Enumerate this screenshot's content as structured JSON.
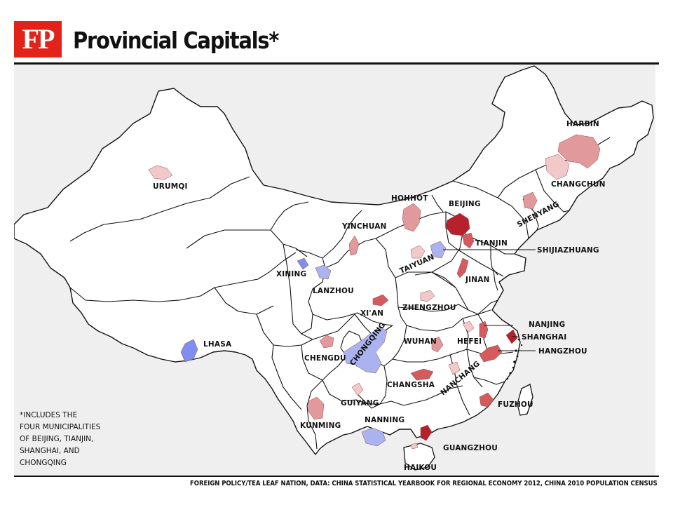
{
  "header": {
    "logo_text": "FP",
    "title": "Provincial Capitals*"
  },
  "footnote": {
    "lines": [
      "*INCLUDES THE",
      "FOUR MUNICIPALITIES",
      "OF BEIJING, TIANJIN,",
      "SHANGHAI, AND",
      "CHONGQING"
    ]
  },
  "credit": "FOREIGN POLICY/TEA LEAF NATION, DATA: CHINA STATISTICAL YEARBOOK FOR REGIONAL ECONOMY 2012, CHINA 2010 POPULATION CENSUS",
  "colors": {
    "background": "#efefef",
    "land": "#ffffff",
    "border": "#111111",
    "red_dark": "#b7212c",
    "red_mid": "#d45a5e",
    "red_light": "#e2999b",
    "red_pale": "#f2c9ca",
    "blue_light": "#aab3f0",
    "blue_mid": "#7f8ef0"
  },
  "cities": [
    {
      "name": "HARBIN",
      "color": "#e2999b"
    },
    {
      "name": "CHANGCHUN",
      "color": "#f2c9ca"
    },
    {
      "name": "SHENYANG",
      "color": "#e2999b"
    },
    {
      "name": "URUMQI",
      "color": "#f2c9ca"
    },
    {
      "name": "HOHHOT",
      "color": "#e2999b"
    },
    {
      "name": "BEIJING",
      "color": "#b7212c"
    },
    {
      "name": "TIANJIN",
      "color": "#d45a5e"
    },
    {
      "name": "SHIJIAZHUANG",
      "color": "#aab3f0"
    },
    {
      "name": "YINCHUAN",
      "color": "#e2999b"
    },
    {
      "name": "TAIYUAN",
      "color": "#f2c9ca"
    },
    {
      "name": "XINING",
      "color": "#7f8ef0"
    },
    {
      "name": "LANZHOU",
      "color": "#aab3f0"
    },
    {
      "name": "JINAN",
      "color": "#d45a5e"
    },
    {
      "name": "XI'AN",
      "color": "#d45a5e"
    },
    {
      "name": "ZHENGZHOU",
      "color": "#f2c9ca"
    },
    {
      "name": "LHASA",
      "color": "#7f8ef0"
    },
    {
      "name": "CHONGQING",
      "color": "#aab3f0"
    },
    {
      "name": "CHENGDU",
      "color": "#e2999b"
    },
    {
      "name": "WUHAN",
      "color": "#e2999b"
    },
    {
      "name": "HEFEI",
      "color": "#f2c9ca"
    },
    {
      "name": "NANJING",
      "color": "#d45a5e"
    },
    {
      "name": "SHANGHAI",
      "color": "#b7212c"
    },
    {
      "name": "HANGZHOU",
      "color": "#d45a5e"
    },
    {
      "name": "CHANGSHA",
      "color": "#d45a5e"
    },
    {
      "name": "NANCHANG",
      "color": "#f2c9ca"
    },
    {
      "name": "GUIYANG",
      "color": "#f2c9ca"
    },
    {
      "name": "KUNMING",
      "color": "#e2999b"
    },
    {
      "name": "FUZHOU",
      "color": "#d45a5e"
    },
    {
      "name": "NANNING",
      "color": "#aab3f0"
    },
    {
      "name": "GUANGZHOU",
      "color": "#b7212c"
    },
    {
      "name": "HAIKOU",
      "color": "#f2c9ca"
    }
  ]
}
